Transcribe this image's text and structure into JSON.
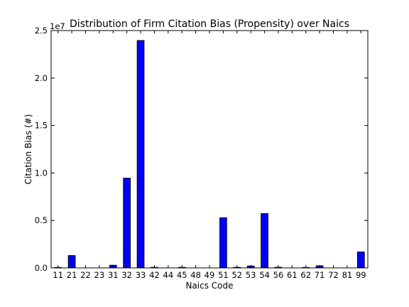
{
  "chart_data": {
    "type": "bar",
    "title": "Distribution of Firm Citation Bias (Propensity) over Naics",
    "xlabel": "Naics Code",
    "ylabel": "Citation Bias (#)",
    "y_offset_text": "1e7",
    "ylim": [
      0,
      25000000
    ],
    "yticks": [
      0,
      5000000,
      10000000,
      15000000,
      20000000,
      25000000
    ],
    "ytick_labels": [
      "0.0",
      "0.5",
      "1.0",
      "1.5",
      "2.0",
      "2.5"
    ],
    "categories": [
      "11",
      "21",
      "22",
      "23",
      "31",
      "32",
      "33",
      "42",
      "44",
      "45",
      "48",
      "49",
      "51",
      "52",
      "53",
      "54",
      "56",
      "61",
      "62",
      "71",
      "72",
      "81",
      "99"
    ],
    "values": [
      50000,
      1300000,
      0,
      0,
      280000,
      9450000,
      23950000,
      60000,
      0,
      60000,
      0,
      0,
      5280000,
      60000,
      200000,
      5720000,
      70000,
      0,
      50000,
      220000,
      0,
      0,
      1680000
    ],
    "bar_color": "#0000ff",
    "bar_edge_color": "#000000",
    "grid": false,
    "legend": "none"
  }
}
